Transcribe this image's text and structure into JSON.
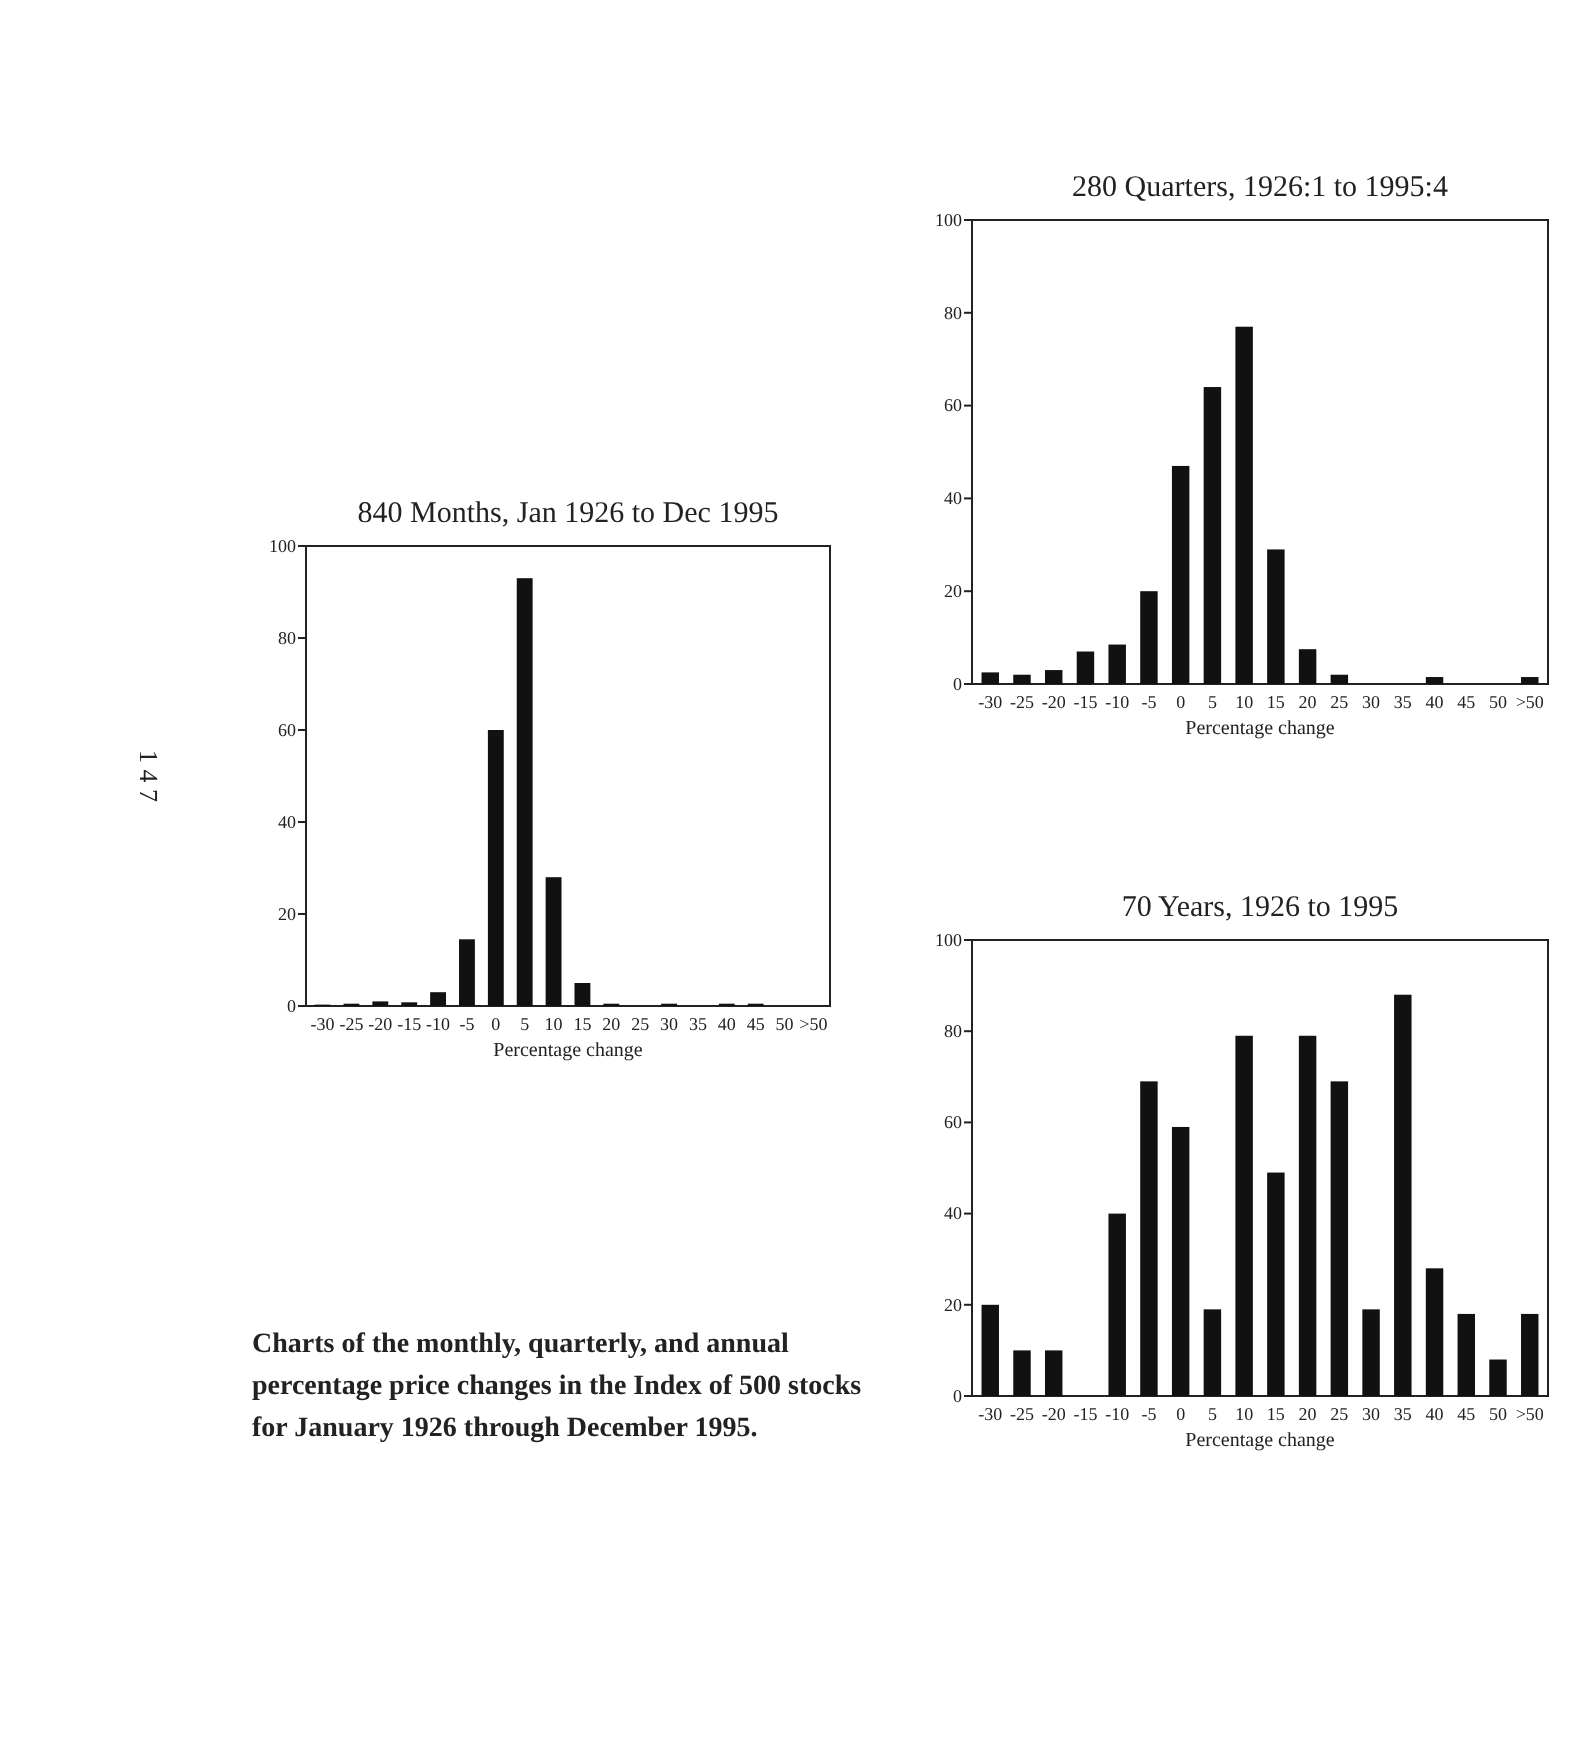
{
  "chart_data": [
    {
      "type": "bar",
      "title": "840 Months, Jan 1926 to Dec 1995",
      "xlabel": "Percentage change",
      "categories": [
        "-30",
        "-25",
        "-20",
        "-15",
        "-10",
        "-5",
        "0",
        "5",
        "10",
        "15",
        "20",
        "25",
        "30",
        "35",
        "40",
        "45",
        "50",
        ">50"
      ],
      "values": [
        0.3,
        0.5,
        1,
        0.8,
        3,
        14.5,
        60,
        93,
        28,
        5,
        0.5,
        0,
        0.5,
        0,
        0.5,
        0.5,
        0,
        0
      ],
      "color": "#111111",
      "ylim": [
        0,
        100
      ],
      "yticks": [
        0,
        20,
        40,
        60,
        80,
        100
      ],
      "grid": false,
      "annotations": [
        "1 4 7",
        "Charts of the monthly, quarterly, and annual percentage price changes in the Index of 500 stocks for January 1926 through December 1995."
      ]
    },
    {
      "type": "bar",
      "title": "280 Quarters, 1926:1 to 1995:4",
      "xlabel": "Percentage change",
      "categories": [
        "-30",
        "-25",
        "-20",
        "-15",
        "-10",
        "-5",
        "0",
        "5",
        "10",
        "15",
        "20",
        "25",
        "30",
        "35",
        "40",
        "45",
        "50",
        ">50"
      ],
      "values": [
        2.5,
        2,
        3,
        7,
        8.5,
        20,
        47,
        64,
        77,
        29,
        7.5,
        2,
        0,
        0,
        1.5,
        0,
        0,
        1.5
      ],
      "color": "#111111",
      "ylim": [
        0,
        100
      ],
      "yticks": [
        0,
        20,
        40,
        60,
        80,
        100
      ],
      "grid": false
    },
    {
      "type": "bar",
      "title": "70 Years, 1926 to 1995",
      "xlabel": "Percentage change",
      "categories": [
        "-30",
        "-25",
        "-20",
        "-15",
        "-10",
        "-5",
        "0",
        "5",
        "10",
        "15",
        "20",
        "25",
        "30",
        "35",
        "40",
        "45",
        "50",
        ">50"
      ],
      "values": [
        20,
        10,
        10,
        0,
        40,
        69,
        59,
        19,
        79,
        49,
        79,
        69,
        19,
        88,
        28,
        18,
        8,
        18
      ],
      "color": "#111111",
      "ylim": [
        0,
        100
      ],
      "yticks": [
        0,
        20,
        40,
        60,
        80,
        100
      ],
      "grid": false
    }
  ]
}
